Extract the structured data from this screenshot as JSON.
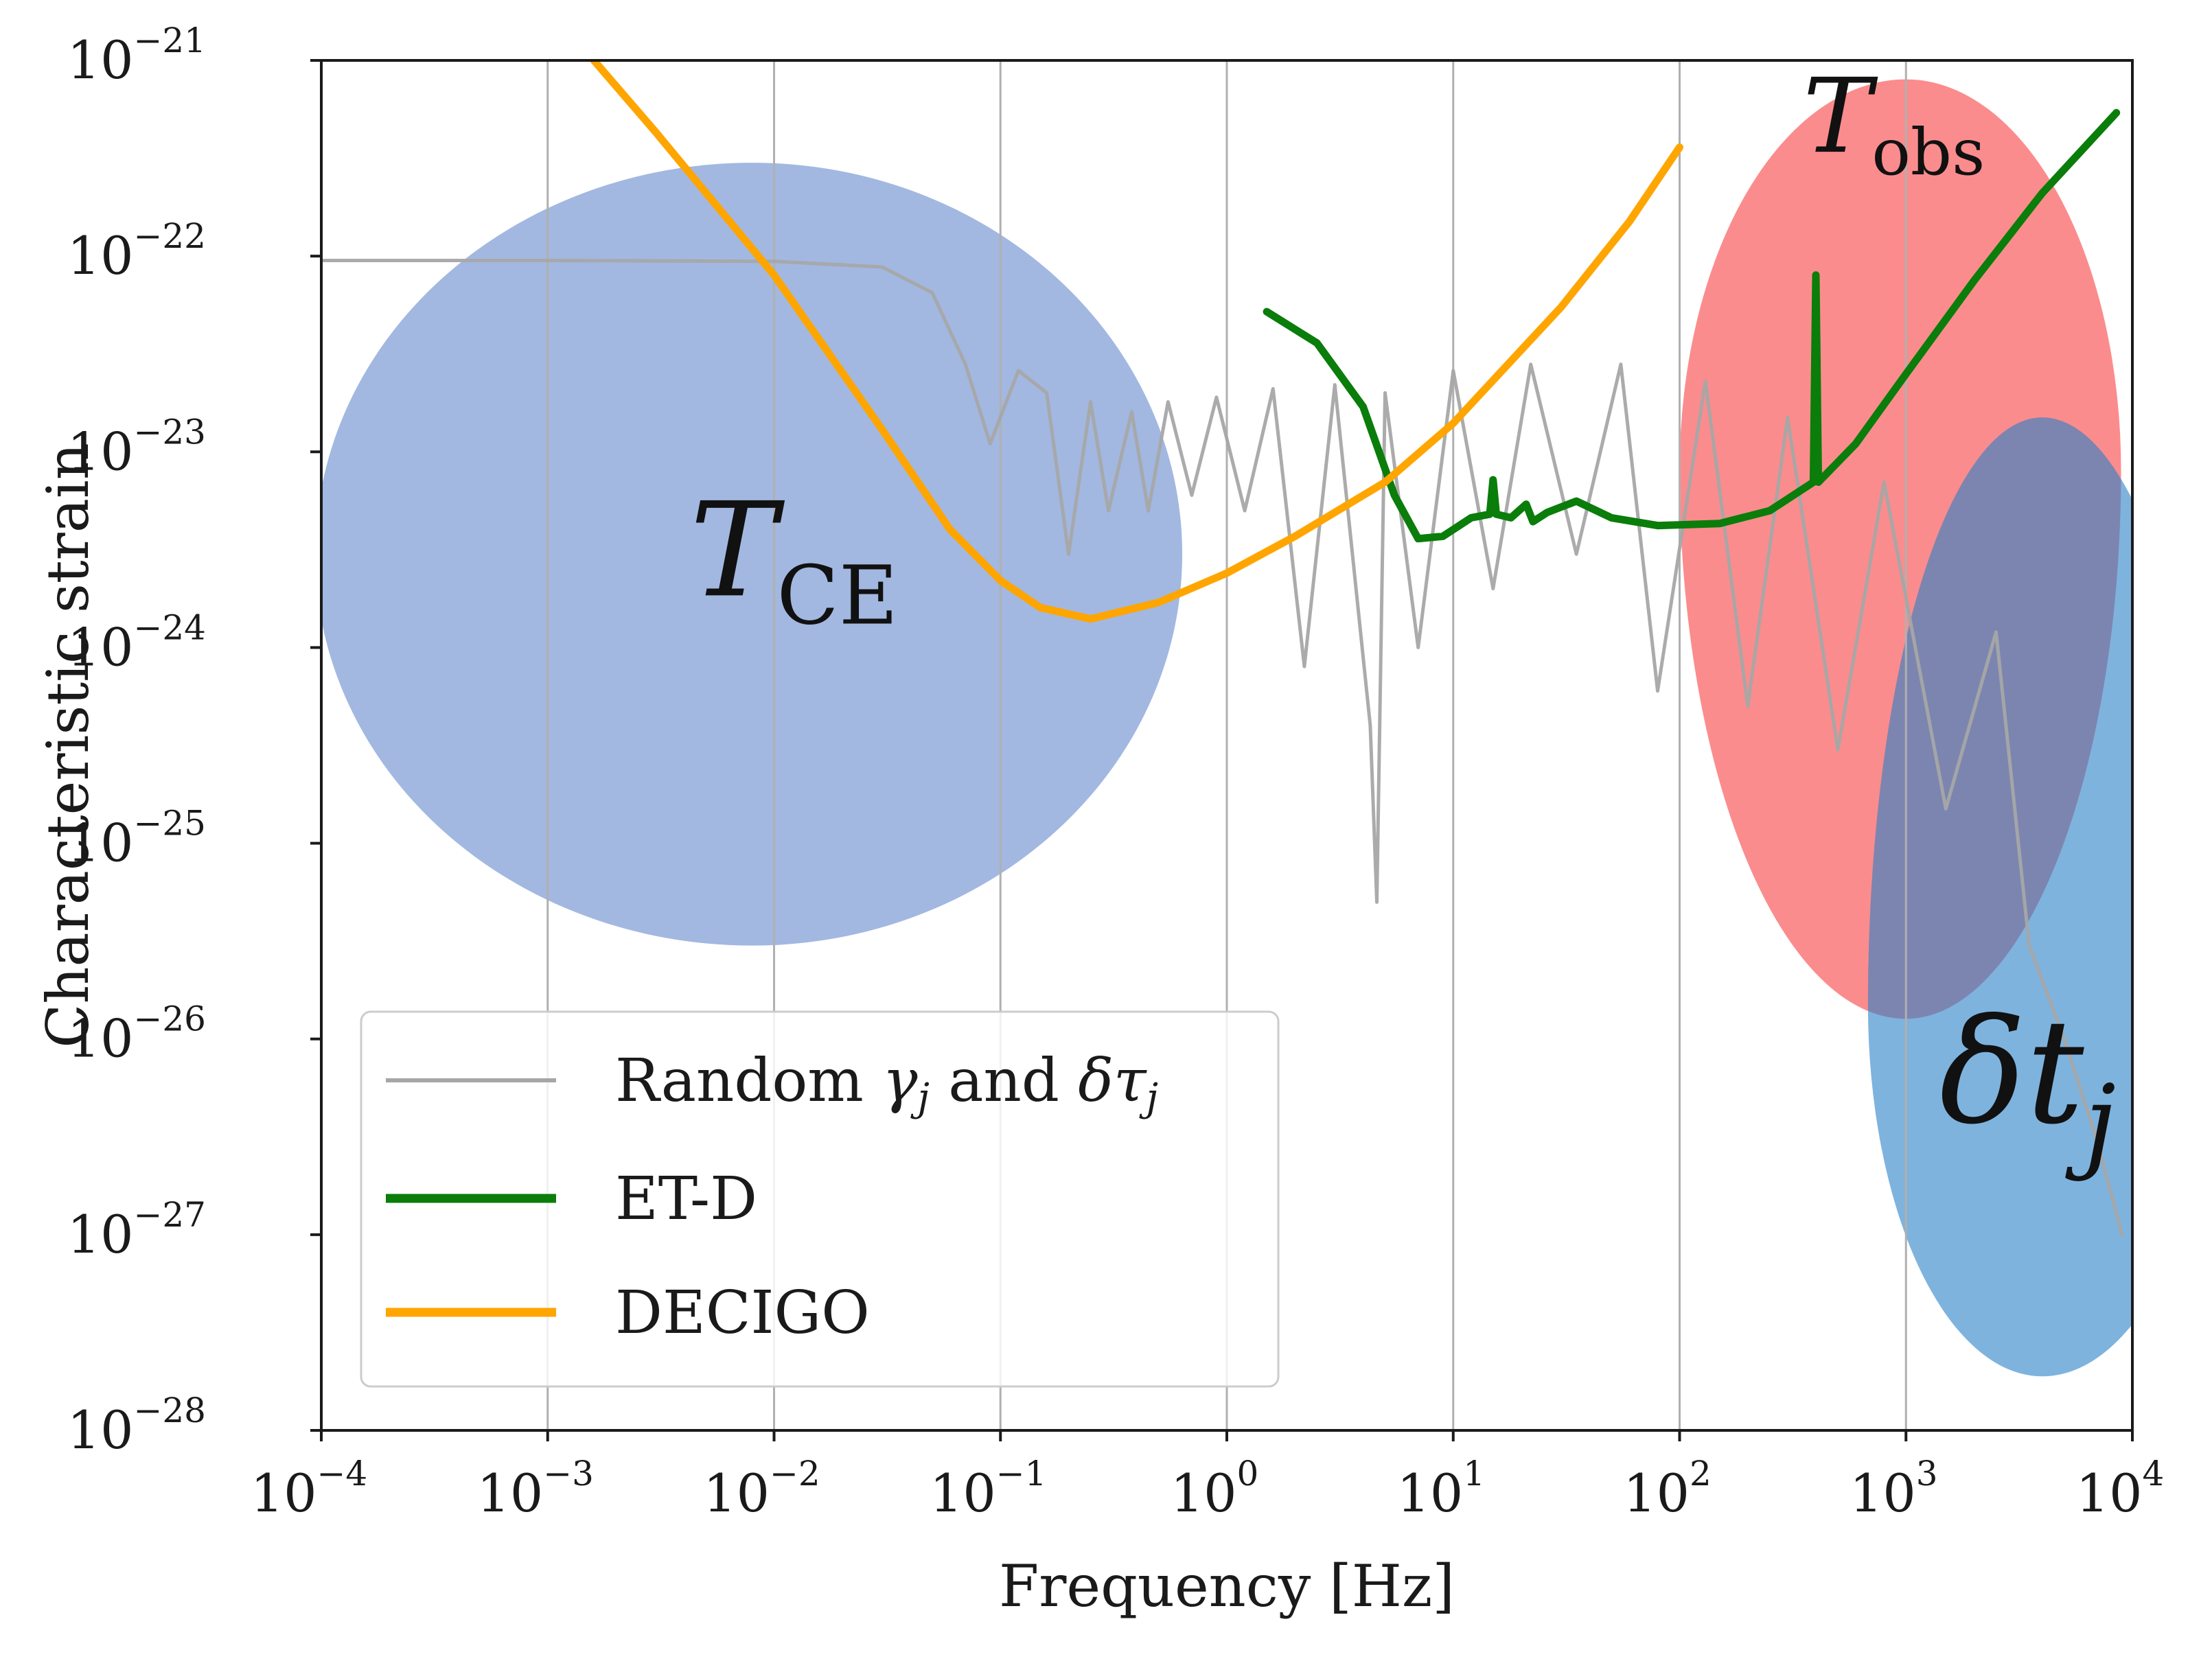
{
  "chart_data": {
    "type": "line",
    "title": "",
    "xlabel": "Frequency [Hz]",
    "ylabel": "Characteristic strain",
    "xscale": "log",
    "yscale": "log",
    "xlim": [
      0.0001,
      10000
    ],
    "ylim": [
      1e-28,
      1e-21
    ],
    "grid": "vertical",
    "x_ticks": [
      {
        "base": "10",
        "exp": "−4",
        "value": 0.0001
      },
      {
        "base": "10",
        "exp": "−3",
        "value": 0.001
      },
      {
        "base": "10",
        "exp": "−2",
        "value": 0.01
      },
      {
        "base": "10",
        "exp": "−1",
        "value": 0.1
      },
      {
        "base": "10",
        "exp": "0",
        "value": 1
      },
      {
        "base": "10",
        "exp": "1",
        "value": 10
      },
      {
        "base": "10",
        "exp": "2",
        "value": 100
      },
      {
        "base": "10",
        "exp": "3",
        "value": 1000
      },
      {
        "base": "10",
        "exp": "4",
        "value": 10000
      }
    ],
    "y_ticks": [
      {
        "base": "10",
        "exp": "−21",
        "value": 1e-21
      },
      {
        "base": "10",
        "exp": "−22",
        "value": 1e-22
      },
      {
        "base": "10",
        "exp": "−23",
        "value": 1e-23
      },
      {
        "base": "10",
        "exp": "−24",
        "value": 1e-24
      },
      {
        "base": "10",
        "exp": "−25",
        "value": 1e-25
      },
      {
        "base": "10",
        "exp": "−26",
        "value": 1e-26
      },
      {
        "base": "10",
        "exp": "−27",
        "value": 1e-27
      },
      {
        "base": "10",
        "exp": "−28",
        "value": 1e-28
      }
    ],
    "legend": {
      "placement": "lower-left",
      "entries": [
        {
          "series": "random",
          "text_a": "Random ",
          "sym_a": "γ",
          "sub_a": "j",
          "text_b": " and ",
          "sym_b": "δτ",
          "sub_b": "j"
        },
        {
          "series": "etd",
          "text": "ET-D"
        },
        {
          "series": "decigo",
          "text": "DECIGO"
        }
      ]
    },
    "series": [
      {
        "name": "Random γj and δτj",
        "color": "#a6a6a6",
        "points": [
          [
            0.0001,
            9.5e-23
          ],
          [
            0.001,
            9.5e-23
          ],
          [
            0.01,
            9.4e-23
          ],
          [
            0.03,
            8.8e-23
          ],
          [
            0.05,
            6.5e-23
          ],
          [
            0.07,
            2.8e-23
          ],
          [
            0.09,
            1.1e-23
          ],
          [
            0.12,
            2.6e-23
          ],
          [
            0.16,
            2e-23
          ],
          [
            0.2,
            3e-24
          ],
          [
            0.25,
            1.8e-23
          ],
          [
            0.3,
            5e-24
          ],
          [
            0.38,
            1.6e-23
          ],
          [
            0.45,
            5e-24
          ],
          [
            0.55,
            1.8e-23
          ],
          [
            0.7,
            6e-24
          ],
          [
            0.9,
            1.9e-23
          ],
          [
            1.2,
            5e-24
          ],
          [
            1.6,
            2.1e-23
          ],
          [
            2.2,
            8e-25
          ],
          [
            3.0,
            2.2e-23
          ],
          [
            4.3,
            4e-25
          ],
          [
            4.6,
            5e-26
          ],
          [
            5.0,
            2e-23
          ],
          [
            7.0,
            1e-24
          ],
          [
            10,
            2.6e-23
          ],
          [
            15,
            2e-24
          ],
          [
            22,
            2.8e-23
          ],
          [
            35,
            3e-24
          ],
          [
            55,
            2.8e-23
          ],
          [
            80,
            6e-25
          ],
          [
            130,
            2.3e-23
          ],
          [
            200,
            5e-25
          ],
          [
            300,
            1.5e-23
          ],
          [
            500,
            3e-25
          ],
          [
            800,
            7e-24
          ],
          [
            1500,
            1.5e-25
          ],
          [
            2500,
            1.2e-24
          ],
          [
            3500,
            3e-26
          ],
          [
            5000,
            1e-26
          ],
          [
            7000,
            3e-27
          ],
          [
            9000,
            1e-27
          ]
        ]
      },
      {
        "name": "ET-D",
        "color": "#0a7d0a",
        "points": [
          [
            1.5,
            5.2e-23
          ],
          [
            2.5,
            3.6e-23
          ],
          [
            4,
            1.7e-23
          ],
          [
            5.5,
            6e-24
          ],
          [
            7,
            3.6e-24
          ],
          [
            9,
            3.7e-24
          ],
          [
            12,
            4.6e-24
          ],
          [
            14.5,
            4.8e-24
          ],
          [
            15,
            7.2e-24
          ],
          [
            15.5,
            4.8e-24
          ],
          [
            18,
            4.6e-24
          ],
          [
            21,
            5.4e-24
          ],
          [
            22.5,
            4.4e-24
          ],
          [
            26,
            4.9e-24
          ],
          [
            35,
            5.6e-24
          ],
          [
            50,
            4.6e-24
          ],
          [
            80,
            4.2e-24
          ],
          [
            150,
            4.3e-24
          ],
          [
            250,
            5e-24
          ],
          [
            390,
            7e-24
          ],
          [
            400,
            8e-23
          ],
          [
            410,
            7e-24
          ],
          [
            600,
            1.1e-23
          ],
          [
            1000,
            2.5e-23
          ],
          [
            2000,
            7.5e-23
          ],
          [
            4000,
            2.1e-22
          ],
          [
            8500,
            5.4e-22
          ]
        ]
      },
      {
        "name": "DECIGO",
        "color": "#ffa500",
        "points": [
          [
            0.0016,
            1e-21
          ],
          [
            0.003,
            4.3e-22
          ],
          [
            0.01,
            8e-23
          ],
          [
            0.03,
            1.3e-23
          ],
          [
            0.06,
            4e-24
          ],
          [
            0.1,
            2.2e-24
          ],
          [
            0.15,
            1.6e-24
          ],
          [
            0.25,
            1.4e-24
          ],
          [
            0.5,
            1.7e-24
          ],
          [
            1,
            2.4e-24
          ],
          [
            2,
            3.7e-24
          ],
          [
            5,
            7e-24
          ],
          [
            10,
            1.4e-23
          ],
          [
            30,
            5.5e-23
          ],
          [
            60,
            1.5e-22
          ],
          [
            100,
            3.6e-22
          ]
        ]
      }
    ],
    "regions": [
      {
        "label": "T",
        "sub": "CE",
        "fill": "#4672c4",
        "opacity": 0.5,
        "center": [
          0.008,
          3e-24
        ],
        "span_decades_x": [
          1.93,
          1.9
        ],
        "span_decades_y": [
          2.0,
          2.0
        ]
      },
      {
        "label": "T",
        "sub": "obs",
        "fill": "#f8191c",
        "opacity": 0.5,
        "center": [
          1000,
          8e-24
        ],
        "span_decades_x": [
          1.0,
          0.95
        ],
        "span_decades_y": [
          2.0,
          2.8
        ]
      },
      {
        "label": "δt",
        "sub": "j",
        "fill": "#2880c8",
        "opacity": 0.6,
        "center": [
          4000,
          1.5e-26
        ],
        "span_decades_x": [
          0.77,
          0.78
        ],
        "span_decades_y": [
          3.0,
          1.9
        ]
      }
    ]
  }
}
